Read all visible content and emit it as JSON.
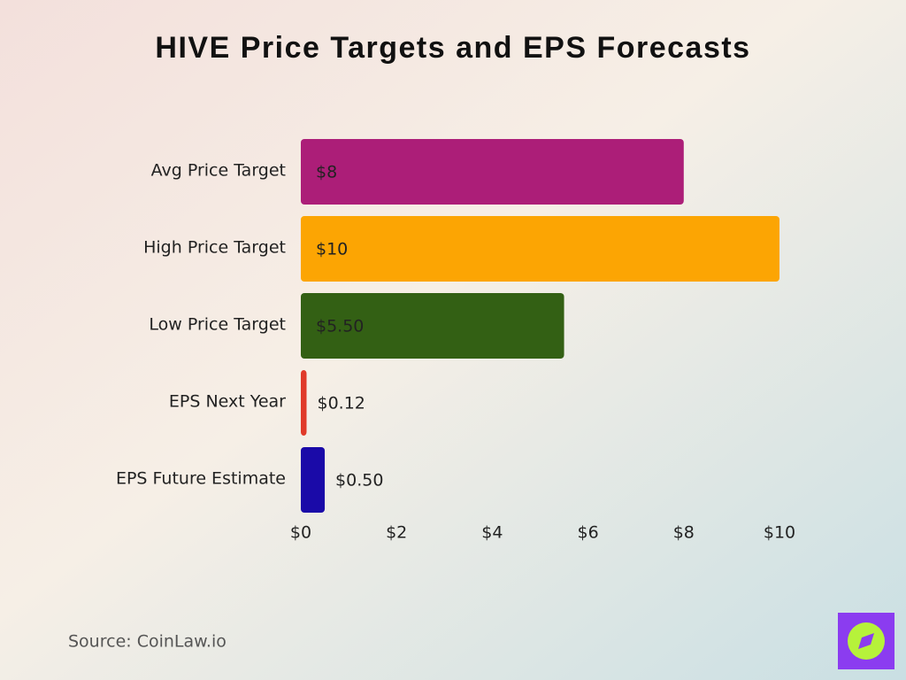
{
  "chart_data": {
    "type": "bar",
    "orientation": "horizontal",
    "title": "HIVE Price Targets and EPS Forecasts",
    "categories": [
      "Avg Price Target",
      "High Price Target",
      "Low Price Target",
      "EPS Next Year",
      "EPS Future Estimate"
    ],
    "values": [
      8,
      10,
      5.5,
      0.12,
      0.5
    ],
    "value_labels": [
      "$8",
      "$10",
      "$5.50",
      "$0.12",
      "$0.50"
    ],
    "colors": [
      "#ac1e78",
      "#fca503",
      "#336014",
      "#e03a2a",
      "#1a0aa8"
    ],
    "xlim": [
      0,
      10
    ],
    "xticks": [
      {
        "value": 0,
        "label": "$0"
      },
      {
        "value": 2,
        "label": "$2"
      },
      {
        "value": 4,
        "label": "$4"
      },
      {
        "value": 6,
        "label": "$6"
      },
      {
        "value": 8,
        "label": "$8"
      },
      {
        "value": 10,
        "label": "$10"
      }
    ],
    "grid": false,
    "source": "Source: CoinLaw.io"
  }
}
